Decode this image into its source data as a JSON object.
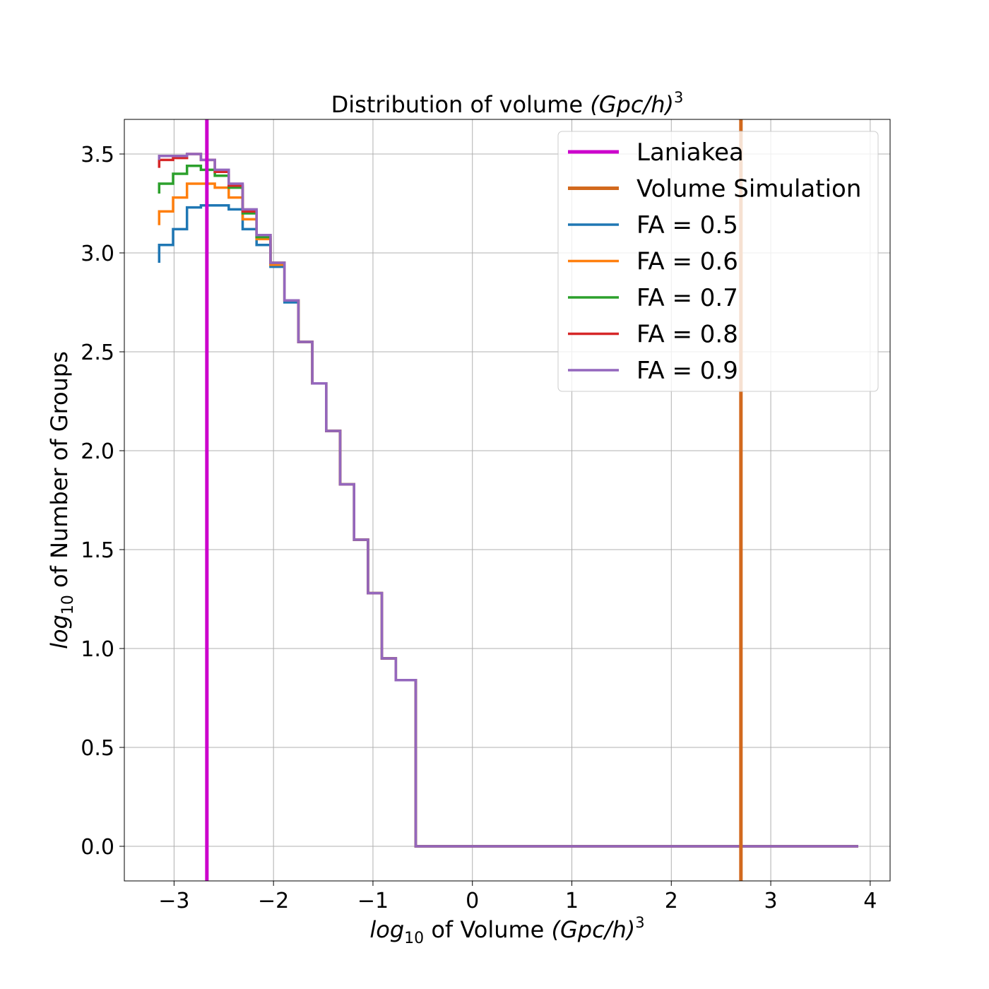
{
  "chart_data": {
    "type": "line",
    "title": {
      "main": "Distribution of volume ",
      "italic": "(Gpc/h)",
      "sup": "3"
    },
    "xlabel": {
      "italic": "log",
      "sub": "10",
      "text": " of Volume ",
      "italic2": "(Gpc/h)",
      "sup": "3"
    },
    "ylabel": {
      "italic": "log",
      "sub": "10",
      "text": " of Number of Groups"
    },
    "xlim": [
      -3.5,
      4.2
    ],
    "ylim": [
      -0.175,
      3.675
    ],
    "xticks": [
      -3,
      -2,
      -1,
      0,
      1,
      2,
      3,
      4
    ],
    "xtick_labels": [
      "−3",
      "−2",
      "−1",
      "0",
      "1",
      "2",
      "3",
      "4"
    ],
    "yticks": [
      0.0,
      0.5,
      1.0,
      1.5,
      2.0,
      2.5,
      3.0,
      3.5
    ],
    "ytick_labels": [
      "0.0",
      "0.5",
      "1.0",
      "1.5",
      "2.0",
      "2.5",
      "3.0",
      "3.5"
    ],
    "grid": true,
    "legend_position": "top-right",
    "vlines": [
      {
        "name": "Laniakea",
        "x": -2.67,
        "color": "#cc00cc"
      },
      {
        "name": "Volume Simulation",
        "x": 2.7,
        "color": "#d2691e"
      }
    ],
    "bin_edges": [
      -3.15,
      -3.01,
      -2.87,
      -2.73,
      -2.59,
      -2.45,
      -2.31,
      -2.17,
      -2.03,
      -1.89,
      -1.75,
      -1.61,
      -1.47,
      -1.33,
      -1.19,
      -1.05,
      -0.91,
      -0.77,
      -0.57,
      3.88
    ],
    "series": [
      {
        "name": "FA = 0.5",
        "color": "#1f77b4",
        "start": 2.95,
        "values": [
          3.04,
          3.12,
          3.23,
          3.24,
          3.24,
          3.22,
          3.12,
          3.04,
          2.93,
          2.75,
          2.55,
          2.34,
          2.1,
          1.83,
          1.55,
          1.28,
          0.95,
          0.84,
          0.0
        ]
      },
      {
        "name": "FA = 0.6",
        "color": "#ff7f0e",
        "start": 3.14,
        "values": [
          3.21,
          3.28,
          3.35,
          3.35,
          3.33,
          3.28,
          3.17,
          3.07,
          2.94,
          2.76,
          2.55,
          2.34,
          2.1,
          1.83,
          1.55,
          1.28,
          0.95,
          0.84,
          0.0
        ]
      },
      {
        "name": "FA = 0.7",
        "color": "#2ca02c",
        "start": 3.3,
        "values": [
          3.35,
          3.4,
          3.44,
          3.42,
          3.39,
          3.33,
          3.2,
          3.08,
          2.95,
          2.76,
          2.55,
          2.34,
          2.1,
          1.83,
          1.55,
          1.28,
          0.95,
          0.84,
          0.0
        ]
      },
      {
        "name": "FA = 0.8",
        "color": "#d62728",
        "start": 3.43,
        "values": [
          3.47,
          3.48,
          3.5,
          3.47,
          3.41,
          3.34,
          3.21,
          3.09,
          2.95,
          2.76,
          2.55,
          2.34,
          2.1,
          1.83,
          1.55,
          1.28,
          0.95,
          0.84,
          0.0
        ]
      },
      {
        "name": "FA = 0.9",
        "color": "#9467bd",
        "start": 3.47,
        "values": [
          3.49,
          3.49,
          3.5,
          3.47,
          3.42,
          3.35,
          3.22,
          3.09,
          2.95,
          2.76,
          2.55,
          2.34,
          2.1,
          1.83,
          1.55,
          1.28,
          0.95,
          0.84,
          0.0
        ]
      }
    ]
  }
}
